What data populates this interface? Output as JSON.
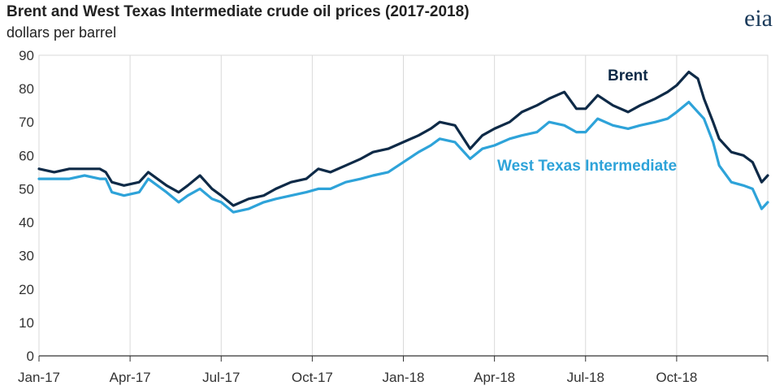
{
  "header": {
    "logo_text": "eia"
  },
  "chart_data": {
    "type": "line",
    "title": "Brent and West Texas Intermediate crude oil prices (2017-2018)",
    "ylabel": "dollars per barrel",
    "xlabel": "",
    "ylim": [
      0,
      90
    ],
    "yticks": [
      0,
      10,
      20,
      30,
      40,
      50,
      60,
      70,
      80,
      90
    ],
    "xlim": [
      0,
      24
    ],
    "xticks": [
      0,
      3,
      6,
      9,
      12,
      15,
      18,
      21
    ],
    "xtick_labels": [
      "Jan-17",
      "Apr-17",
      "Jul-17",
      "Oct-17",
      "Jan-18",
      "Apr-18",
      "Jul-18",
      "Oct-18"
    ],
    "grid": "vertical",
    "series": [
      {
        "name": "Brent",
        "color": "#0e2a47",
        "x": [
          0,
          0.5,
          1,
          1.5,
          2,
          2.2,
          2.4,
          2.8,
          3.3,
          3.6,
          4.2,
          4.6,
          4.9,
          5.3,
          5.7,
          6.0,
          6.4,
          6.9,
          7.4,
          7.8,
          8.3,
          8.8,
          9.2,
          9.6,
          10.1,
          10.6,
          11.0,
          11.5,
          12.0,
          12.5,
          12.9,
          13.2,
          13.7,
          14.2,
          14.6,
          15.0,
          15.5,
          15.9,
          16.4,
          16.8,
          17.3,
          17.7,
          18.0,
          18.4,
          18.9,
          19.4,
          19.8,
          20.3,
          20.7,
          21.0,
          21.4,
          21.7,
          21.9,
          22.2,
          22.4,
          22.8,
          23.2,
          23.5,
          23.8,
          24.0
        ],
        "values": [
          56,
          55,
          56,
          56,
          56,
          55,
          52,
          51,
          52,
          55,
          51,
          49,
          51,
          54,
          50,
          48,
          45,
          47,
          48,
          50,
          52,
          53,
          56,
          55,
          57,
          59,
          61,
          62,
          64,
          66,
          68,
          70,
          69,
          62,
          66,
          68,
          70,
          73,
          75,
          77,
          79,
          74,
          74,
          78,
          75,
          73,
          75,
          77,
          79,
          81,
          85,
          83,
          77,
          70,
          65,
          61,
          60,
          58,
          52,
          54
        ]
      },
      {
        "name": "West Texas Intermediate",
        "color": "#2ea3d9",
        "x": [
          0,
          0.5,
          1,
          1.5,
          2,
          2.2,
          2.4,
          2.8,
          3.3,
          3.6,
          4.2,
          4.6,
          4.9,
          5.3,
          5.7,
          6.0,
          6.4,
          6.9,
          7.4,
          7.8,
          8.3,
          8.8,
          9.2,
          9.6,
          10.1,
          10.6,
          11.0,
          11.5,
          12.0,
          12.5,
          12.9,
          13.2,
          13.7,
          14.2,
          14.6,
          15.0,
          15.5,
          15.9,
          16.4,
          16.8,
          17.3,
          17.7,
          18.0,
          18.4,
          18.9,
          19.4,
          19.8,
          20.3,
          20.7,
          21.0,
          21.4,
          21.7,
          21.9,
          22.2,
          22.4,
          22.8,
          23.2,
          23.5,
          23.8,
          24.0
        ],
        "values": [
          53,
          53,
          53,
          54,
          53,
          53,
          49,
          48,
          49,
          53,
          49,
          46,
          48,
          50,
          47,
          46,
          43,
          44,
          46,
          47,
          48,
          49,
          50,
          50,
          52,
          53,
          54,
          55,
          58,
          61,
          63,
          65,
          64,
          59,
          62,
          63,
          65,
          66,
          67,
          70,
          69,
          67,
          67,
          71,
          69,
          68,
          69,
          70,
          71,
          73,
          76,
          73,
          71,
          64,
          57,
          52,
          51,
          50,
          44,
          46
        ]
      }
    ]
  }
}
